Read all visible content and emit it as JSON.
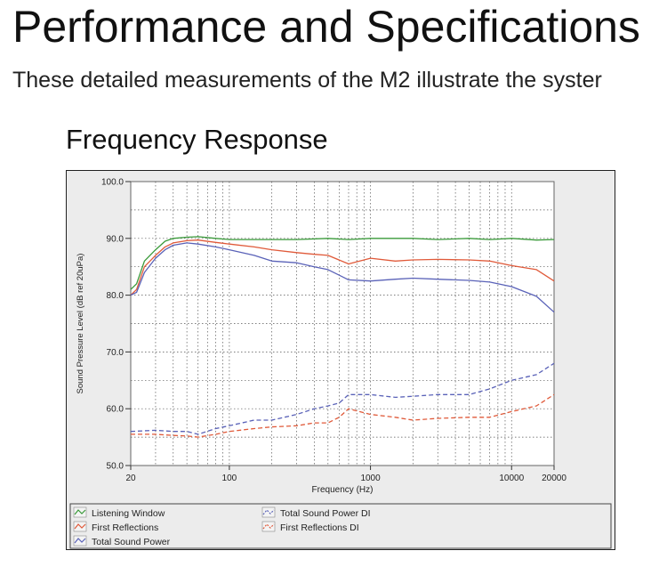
{
  "page": {
    "title": "Performance and Specifications",
    "intro": "These detailed measurements of the M2 illustrate the syster",
    "section_title": "Frequency Response"
  },
  "chart_data": {
    "type": "line",
    "xlabel": "Frequency (Hz)",
    "ylabel": "Sound Pressure Level (dB ref 20uPa)",
    "xscale": "log",
    "xlim": [
      20,
      20000
    ],
    "ylim": [
      50,
      100
    ],
    "x_ticks": [
      20,
      100,
      1000,
      10000,
      20000
    ],
    "x_tick_labels": [
      "20",
      "100",
      "1000",
      "10000",
      "20000"
    ],
    "y_ticks": [
      50,
      60,
      70,
      80,
      90,
      100
    ],
    "y_tick_labels": [
      "50.0",
      "60.0",
      "70.0",
      "80.0",
      "90.0",
      "100.0"
    ],
    "grid": true,
    "legend_position": "bottom",
    "legend_columns": [
      [
        "Listening Window",
        "First Reflections",
        "Total Sound Power"
      ],
      [
        "Total Sound Power DI",
        "First Reflections DI"
      ]
    ],
    "series": [
      {
        "name": "Listening Window",
        "color": "#3a9a3a",
        "dashed": false,
        "x": [
          20,
          22,
          25,
          30,
          35,
          40,
          50,
          60,
          80,
          100,
          150,
          200,
          300,
          500,
          700,
          1000,
          2000,
          3000,
          5000,
          7000,
          10000,
          15000,
          20000
        ],
        "y": [
          81,
          82,
          86,
          88,
          89.5,
          90,
          90.2,
          90.3,
          90,
          89.8,
          89.8,
          89.8,
          89.8,
          90,
          89.8,
          90,
          90,
          89.8,
          90,
          89.8,
          90,
          89.7,
          89.8
        ]
      },
      {
        "name": "First Reflections",
        "color": "#e05a3a",
        "dashed": false,
        "x": [
          20,
          22,
          25,
          30,
          35,
          40,
          50,
          60,
          80,
          100,
          150,
          200,
          300,
          400,
          500,
          700,
          1000,
          1500,
          2000,
          3000,
          5000,
          7000,
          10000,
          15000,
          20000
        ],
        "y": [
          80,
          81,
          85,
          87,
          88.5,
          89.2,
          89.6,
          89.7,
          89.3,
          89,
          88.5,
          88,
          87.5,
          87.2,
          87,
          85.5,
          86.5,
          86,
          86.2,
          86.3,
          86.2,
          86,
          85.2,
          84.5,
          82.5
        ]
      },
      {
        "name": "Total Sound Power",
        "color": "#5a62b8",
        "dashed": false,
        "x": [
          20,
          22,
          25,
          30,
          35,
          40,
          50,
          60,
          80,
          100,
          150,
          200,
          300,
          400,
          500,
          700,
          1000,
          1500,
          2000,
          3000,
          5000,
          7000,
          10000,
          15000,
          20000
        ],
        "y": [
          80,
          80.5,
          84,
          86.5,
          88,
          88.8,
          89.2,
          89,
          88.5,
          88,
          87,
          86,
          85.7,
          85,
          84.5,
          82.7,
          82.5,
          82.8,
          83,
          82.8,
          82.6,
          82.3,
          81.5,
          79.8,
          77
        ]
      },
      {
        "name": "Total Sound Power DI",
        "color": "#5a62b8",
        "dashed": true,
        "x": [
          20,
          30,
          40,
          50,
          60,
          80,
          100,
          150,
          200,
          300,
          400,
          500,
          600,
          700,
          1000,
          1500,
          2000,
          3000,
          5000,
          7000,
          10000,
          15000,
          20000
        ],
        "y": [
          56,
          56.2,
          56,
          56,
          55.5,
          56.5,
          57,
          58,
          58,
          59,
          60,
          60.5,
          61,
          62.5,
          62.5,
          62,
          62.2,
          62.5,
          62.5,
          63.5,
          65,
          66,
          68
        ]
      },
      {
        "name": "First Reflections DI",
        "color": "#e05a3a",
        "dashed": true,
        "x": [
          20,
          30,
          40,
          50,
          60,
          80,
          100,
          150,
          200,
          300,
          400,
          500,
          600,
          700,
          1000,
          1500,
          2000,
          3000,
          5000,
          7000,
          10000,
          15000,
          20000
        ],
        "y": [
          55.5,
          55.5,
          55.3,
          55.2,
          55,
          55.5,
          56,
          56.5,
          56.8,
          57,
          57.5,
          57.5,
          58.5,
          60,
          59,
          58.5,
          58,
          58.3,
          58.5,
          58.5,
          59.5,
          60.5,
          62.5
        ]
      }
    ]
  }
}
